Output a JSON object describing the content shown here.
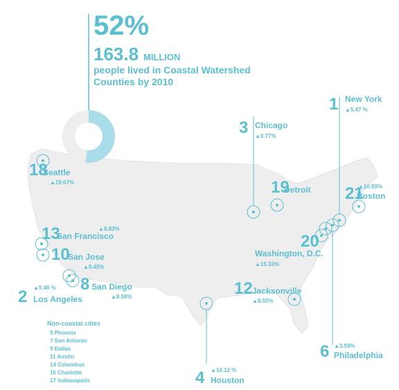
{
  "header": {
    "percent": {
      "value": 52,
      "label": "52%"
    },
    "amount": "163.8",
    "unit": "MILLION",
    "caption_lines": [
      "people lived in Coastal Watershed",
      "Counties by 2010"
    ]
  },
  "cities": [
    {
      "rank": 1,
      "name": "New York",
      "change": "▲5.47 %"
    },
    {
      "rank": 3,
      "name": "Chicago",
      "change": "▲0.77%"
    },
    {
      "rank": 18,
      "name": "Seattle",
      "change": "▲19.07%"
    },
    {
      "rank": 19,
      "name": "Detroit"
    },
    {
      "rank": 21,
      "name": "Boston",
      "change": "▲10.93%"
    },
    {
      "rank": 13,
      "name": "San Francisco",
      "change": "▲9.83%"
    },
    {
      "rank": 10,
      "name": "San Jose",
      "change": "▲9.45%"
    },
    {
      "rank": 20
    },
    {
      "name": "Washington, D.C.",
      "change": "▲15.33%"
    },
    {
      "rank": 2,
      "name": "Los Angeles",
      "change": "▲5.46 %"
    },
    {
      "rank": 8,
      "name": "San Diego",
      "change": "▲8.58%"
    },
    {
      "rank": 12,
      "name": "Jacksonville",
      "change": "▲8.55%"
    },
    {
      "rank": 4,
      "name": "Houston",
      "change": "▲10.12 %"
    },
    {
      "rank": 6,
      "name": "Philadelphia",
      "change": "▲3.59%"
    }
  ],
  "non_coastal": {
    "title": "Non-coastal cities",
    "items": [
      "5 Phoenix",
      "7 San Antonio",
      "9 Dallas",
      "11 Austin",
      "14 Columbus",
      "15 Charlotte",
      "17 Indianapolis"
    ]
  }
}
